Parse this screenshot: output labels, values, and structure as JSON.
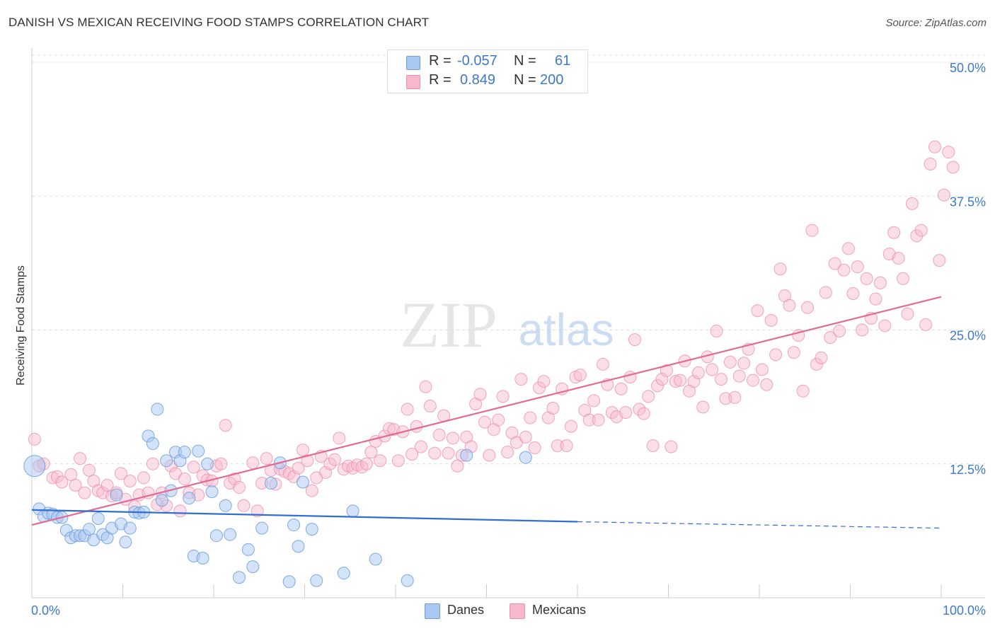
{
  "header": {
    "title": "DANISH VS MEXICAN RECEIVING FOOD STAMPS CORRELATION CHART",
    "source": "Source: ZipAtlas.com"
  },
  "watermark": {
    "zip": "ZIP",
    "atlas": "atlas"
  },
  "legend_top": {
    "rows": [
      {
        "r_label": "R =",
        "r_value": "-0.057",
        "n_label": "N =",
        "n_value": "61"
      },
      {
        "r_label": "R =",
        "r_value": "0.849",
        "n_label": "N =",
        "n_value": "200"
      }
    ]
  },
  "legend_bottom": {
    "danes": "Danes",
    "mexicans": "Mexicans"
  },
  "colors": {
    "danes_fill": "#a9c8f0",
    "danes_stroke": "#6a9ee0",
    "danes_line": "#2f6fd0",
    "mexicans_fill": "#f6b8cb",
    "mexicans_stroke": "#ee8fad",
    "mexicans_line": "#e26a92",
    "axis_text": "#3d79cc",
    "grid": "#dddddd"
  },
  "chart_data": {
    "type": "scatter",
    "title": "DANISH VS MEXICAN RECEIVING FOOD STAMPS CORRELATION CHART",
    "xlabel": "",
    "ylabel": "Receiving Food Stamps",
    "xlim": [
      0,
      100
    ],
    "ylim": [
      0,
      50
    ],
    "x_tick_labels": [
      "0.0%",
      "100.0%"
    ],
    "y_ticks": [
      12.5,
      25.0,
      37.5,
      50.0
    ],
    "y_tick_labels": [
      "12.5%",
      "25.0%",
      "37.5%",
      "50.0%"
    ],
    "grid": true,
    "legend_position": "bottom",
    "series": [
      {
        "name": "Danes",
        "R": -0.057,
        "N": 61,
        "trend": {
          "x_start": 0,
          "y_start": 8.2,
          "x_end": 60,
          "y_end": 7.1,
          "dashed_to_x": 100,
          "dashed_to_y": 6.5
        },
        "points": [
          [
            0.3,
            12.3
          ],
          [
            0.8,
            8.3
          ],
          [
            1.3,
            7.6
          ],
          [
            1.8,
            7.9
          ],
          [
            2.3,
            7.8
          ],
          [
            2.8,
            7.5
          ],
          [
            3.3,
            7.5
          ],
          [
            3.8,
            6.3
          ],
          [
            4.3,
            5.6
          ],
          [
            4.8,
            5.8
          ],
          [
            5.3,
            5.8
          ],
          [
            5.8,
            5.8
          ],
          [
            6.3,
            6.4
          ],
          [
            6.8,
            5.4
          ],
          [
            7.3,
            7.4
          ],
          [
            7.8,
            5.9
          ],
          [
            8.3,
            5.6
          ],
          [
            8.8,
            6.5
          ],
          [
            9.3,
            9.6
          ],
          [
            9.8,
            6.9
          ],
          [
            10.3,
            5.2
          ],
          [
            10.8,
            6.5
          ],
          [
            11.3,
            8.0
          ],
          [
            11.8,
            7.9
          ],
          [
            12.3,
            8.0
          ],
          [
            12.8,
            15.1
          ],
          [
            13.3,
            14.4
          ],
          [
            13.8,
            17.6
          ],
          [
            14.3,
            9.1
          ],
          [
            14.8,
            12.8
          ],
          [
            15.3,
            10.0
          ],
          [
            15.8,
            13.6
          ],
          [
            16.3,
            12.8
          ],
          [
            16.8,
            13.6
          ],
          [
            17.3,
            9.3
          ],
          [
            17.8,
            3.9
          ],
          [
            18.3,
            13.7
          ],
          [
            18.8,
            3.7
          ],
          [
            19.3,
            12.5
          ],
          [
            19.8,
            9.9
          ],
          [
            20.3,
            5.8
          ],
          [
            21.3,
            8.6
          ],
          [
            21.8,
            5.9
          ],
          [
            22.8,
            1.9
          ],
          [
            23.8,
            4.5
          ],
          [
            24.3,
            2.9
          ],
          [
            25.3,
            6.5
          ],
          [
            26.3,
            10.7
          ],
          [
            27.3,
            12.6
          ],
          [
            28.3,
            1.5
          ],
          [
            28.8,
            6.8
          ],
          [
            29.3,
            4.8
          ],
          [
            29.8,
            10.8
          ],
          [
            30.8,
            6.4
          ],
          [
            31.3,
            1.6
          ],
          [
            34.3,
            2.3
          ],
          [
            35.3,
            8.1
          ],
          [
            37.8,
            3.6
          ],
          [
            41.3,
            1.6
          ],
          [
            47.8,
            13.3
          ],
          [
            54.3,
            13.1
          ]
        ]
      },
      {
        "name": "Mexicans",
        "R": 0.849,
        "N": 200,
        "trend": {
          "x_start": 0,
          "y_start": 6.8,
          "x_end": 100,
          "y_end": 28.1
        },
        "points": [
          [
            0.3,
            14.8
          ],
          [
            0.8,
            12.3
          ],
          [
            1.3,
            12.5
          ],
          [
            2.3,
            11.2
          ],
          [
            2.8,
            11.3
          ],
          [
            3.3,
            10.8
          ],
          [
            4.3,
            11.5
          ],
          [
            4.8,
            10.5
          ],
          [
            5.3,
            13.0
          ],
          [
            5.8,
            9.8
          ],
          [
            6.3,
            11.9
          ],
          [
            6.8,
            10.9
          ],
          [
            7.3,
            10.0
          ],
          [
            7.8,
            9.8
          ],
          [
            8.3,
            10.5
          ],
          [
            8.8,
            9.5
          ],
          [
            9.3,
            9.8
          ],
          [
            9.8,
            11.6
          ],
          [
            10.3,
            9.2
          ],
          [
            10.8,
            10.9
          ],
          [
            11.3,
            8.5
          ],
          [
            11.8,
            9.6
          ],
          [
            12.3,
            11.2
          ],
          [
            12.8,
            9.8
          ],
          [
            13.3,
            12.5
          ],
          [
            13.8,
            8.7
          ],
          [
            14.3,
            9.8
          ],
          [
            14.8,
            8.6
          ],
          [
            15.3,
            12.3
          ],
          [
            15.8,
            11.6
          ],
          [
            16.3,
            8.1
          ],
          [
            16.8,
            11.1
          ],
          [
            17.3,
            9.8
          ],
          [
            17.8,
            12.2
          ],
          [
            18.3,
            9.6
          ],
          [
            18.8,
            11.4
          ],
          [
            19.3,
            11.0
          ],
          [
            19.8,
            10.9
          ],
          [
            20.3,
            12.3
          ],
          [
            20.8,
            12.5
          ],
          [
            21.3,
            16.1
          ],
          [
            21.8,
            10.7
          ],
          [
            22.3,
            11.1
          ],
          [
            22.8,
            10.3
          ],
          [
            23.3,
            8.6
          ],
          [
            24.3,
            12.6
          ],
          [
            24.8,
            8.1
          ],
          [
            25.3,
            10.7
          ],
          [
            25.8,
            13.0
          ],
          [
            26.3,
            11.9
          ],
          [
            26.8,
            10.6
          ],
          [
            27.3,
            12.0
          ],
          [
            27.8,
            11.8
          ],
          [
            28.3,
            11.6
          ],
          [
            28.8,
            11.3
          ],
          [
            29.3,
            12.1
          ],
          [
            29.8,
            13.8
          ],
          [
            30.3,
            12.8
          ],
          [
            30.8,
            10.0
          ],
          [
            31.3,
            11.2
          ],
          [
            31.8,
            13.2
          ],
          [
            32.3,
            11.7
          ],
          [
            32.8,
            12.5
          ],
          [
            33.3,
            12.9
          ],
          [
            33.8,
            14.9
          ],
          [
            34.3,
            12.0
          ],
          [
            34.8,
            12.3
          ],
          [
            35.3,
            12.1
          ],
          [
            35.8,
            12.4
          ],
          [
            36.3,
            12.2
          ],
          [
            36.8,
            12.5
          ],
          [
            37.3,
            13.6
          ],
          [
            37.8,
            14.6
          ],
          [
            38.3,
            12.8
          ],
          [
            38.8,
            15.1
          ],
          [
            39.3,
            15.8
          ],
          [
            39.8,
            15.7
          ],
          [
            40.3,
            12.8
          ],
          [
            40.8,
            15.5
          ],
          [
            41.3,
            17.6
          ],
          [
            41.8,
            13.4
          ],
          [
            42.3,
            16.0
          ],
          [
            42.8,
            14.1
          ],
          [
            43.3,
            19.7
          ],
          [
            43.8,
            17.9
          ],
          [
            44.3,
            13.5
          ],
          [
            44.8,
            15.2
          ],
          [
            45.3,
            17.0
          ],
          [
            45.8,
            13.5
          ],
          [
            46.3,
            14.9
          ],
          [
            46.8,
            12.3
          ],
          [
            47.3,
            13.3
          ],
          [
            47.8,
            15.0
          ],
          [
            48.3,
            14.1
          ],
          [
            48.8,
            18.1
          ],
          [
            49.3,
            19.0
          ],
          [
            49.8,
            16.4
          ],
          [
            50.3,
            13.3
          ],
          [
            50.8,
            15.7
          ],
          [
            51.3,
            16.6
          ],
          [
            51.8,
            18.8
          ],
          [
            52.3,
            13.6
          ],
          [
            52.8,
            15.4
          ],
          [
            53.3,
            14.5
          ],
          [
            53.8,
            20.4
          ],
          [
            54.3,
            15.0
          ],
          [
            54.8,
            16.8
          ],
          [
            55.3,
            14.0
          ],
          [
            55.8,
            19.6
          ],
          [
            56.3,
            20.2
          ],
          [
            56.8,
            16.8
          ],
          [
            57.3,
            17.7
          ],
          [
            57.8,
            14.2
          ],
          [
            58.3,
            19.5
          ],
          [
            58.8,
            14.2
          ],
          [
            59.3,
            16.0
          ],
          [
            59.8,
            20.6
          ],
          [
            60.3,
            20.8
          ],
          [
            60.8,
            17.5
          ],
          [
            61.3,
            16.6
          ],
          [
            61.8,
            18.4
          ],
          [
            62.3,
            16.6
          ],
          [
            62.8,
            21.8
          ],
          [
            63.3,
            19.9
          ],
          [
            63.8,
            17.3
          ],
          [
            64.3,
            16.9
          ],
          [
            64.8,
            19.5
          ],
          [
            65.3,
            17.3
          ],
          [
            65.8,
            20.6
          ],
          [
            66.3,
            24.1
          ],
          [
            66.8,
            17.6
          ],
          [
            67.3,
            17.2
          ],
          [
            67.8,
            18.8
          ],
          [
            68.3,
            14.2
          ],
          [
            68.8,
            19.8
          ],
          [
            69.3,
            20.4
          ],
          [
            69.8,
            21.2
          ],
          [
            70.3,
            14.1
          ],
          [
            70.8,
            20.2
          ],
          [
            71.3,
            20.3
          ],
          [
            71.8,
            22.1
          ],
          [
            72.3,
            19.3
          ],
          [
            72.8,
            20.2
          ],
          [
            73.3,
            21.0
          ],
          [
            73.8,
            17.8
          ],
          [
            74.3,
            22.5
          ],
          [
            74.8,
            21.3
          ],
          [
            75.3,
            24.9
          ],
          [
            75.8,
            20.4
          ],
          [
            76.3,
            18.6
          ],
          [
            76.8,
            22.0
          ],
          [
            77.3,
            18.7
          ],
          [
            77.8,
            20.7
          ],
          [
            78.3,
            21.9
          ],
          [
            78.8,
            23.2
          ],
          [
            79.3,
            20.3
          ],
          [
            79.8,
            26.8
          ],
          [
            80.3,
            21.3
          ],
          [
            80.8,
            19.9
          ],
          [
            81.3,
            25.9
          ],
          [
            81.8,
            22.7
          ],
          [
            82.3,
            30.7
          ],
          [
            82.8,
            28.2
          ],
          [
            83.3,
            27.3
          ],
          [
            83.8,
            22.9
          ],
          [
            84.3,
            24.5
          ],
          [
            84.8,
            19.3
          ],
          [
            85.3,
            27.1
          ],
          [
            85.8,
            34.3
          ],
          [
            86.3,
            21.8
          ],
          [
            86.8,
            22.4
          ],
          [
            87.3,
            28.5
          ],
          [
            87.8,
            24.3
          ],
          [
            88.3,
            31.2
          ],
          [
            88.8,
            24.9
          ],
          [
            89.3,
            30.6
          ],
          [
            89.8,
            32.6
          ],
          [
            90.3,
            28.4
          ],
          [
            90.8,
            30.9
          ],
          [
            91.3,
            25.0
          ],
          [
            91.8,
            29.8
          ],
          [
            92.3,
            26.1
          ],
          [
            92.8,
            27.9
          ],
          [
            93.3,
            29.4
          ],
          [
            93.8,
            25.4
          ],
          [
            94.3,
            32.1
          ],
          [
            94.8,
            34.1
          ],
          [
            95.3,
            31.7
          ],
          [
            95.8,
            29.8
          ],
          [
            96.3,
            26.5
          ],
          [
            96.8,
            36.8
          ],
          [
            97.3,
            33.8
          ],
          [
            97.8,
            34.3
          ],
          [
            98.3,
            25.5
          ],
          [
            98.8,
            40.5
          ],
          [
            99.3,
            42.1
          ],
          [
            99.8,
            31.5
          ],
          [
            100.3,
            37.6
          ],
          [
            100.8,
            41.6
          ],
          [
            101.3,
            40.2
          ]
        ]
      }
    ]
  }
}
